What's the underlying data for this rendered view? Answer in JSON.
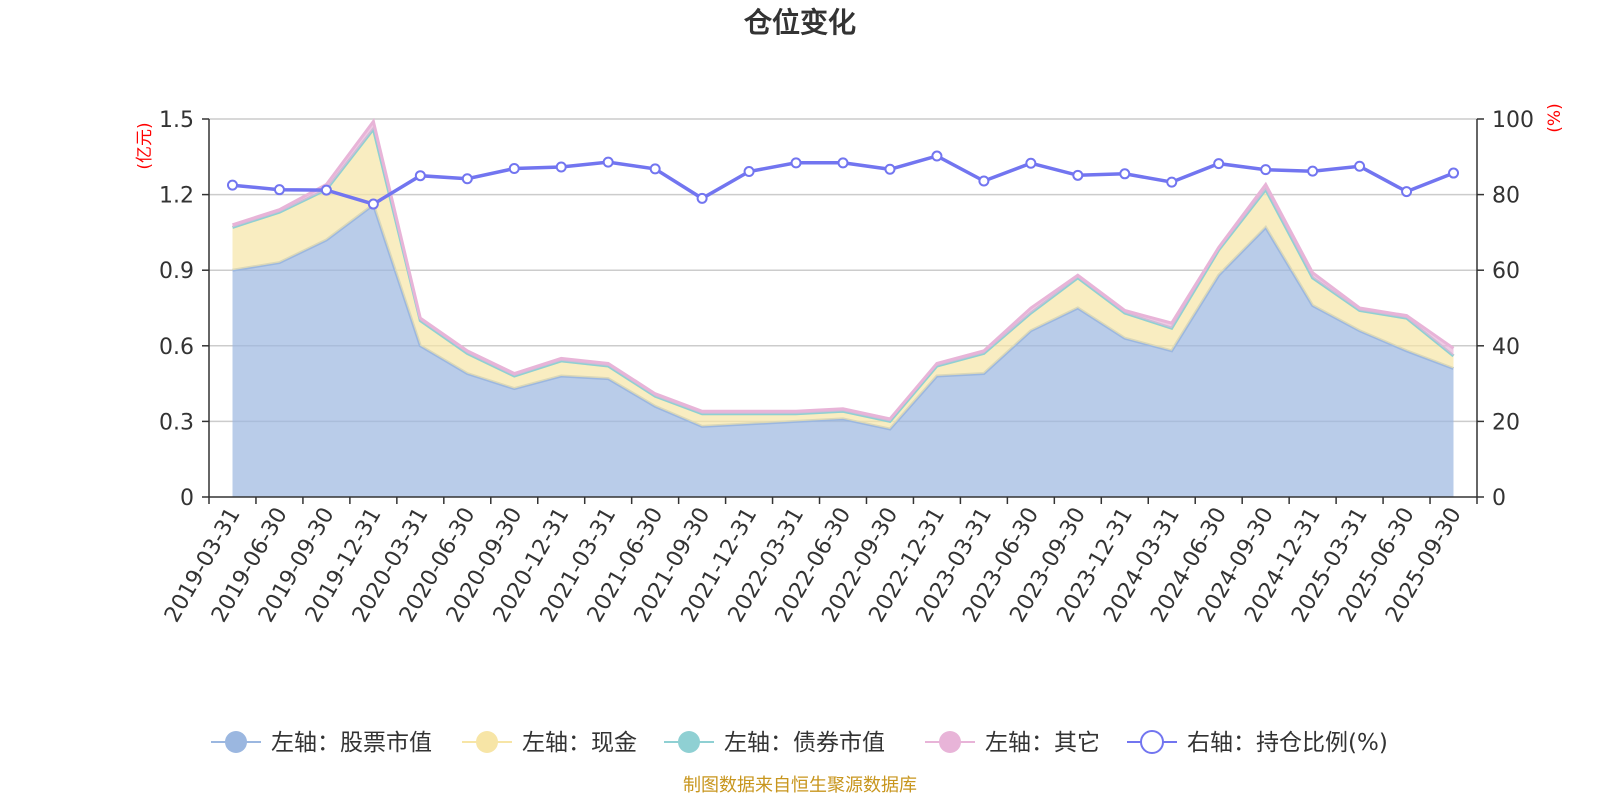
{
  "chart_data": {
    "type": "area",
    "title": "仓位变化",
    "source": "制图数据来自恒生聚源数据库",
    "left_axis": {
      "unit": "(亿元)",
      "range": [
        0,
        1.5
      ],
      "ticks": [
        "0",
        "0.3",
        "0.6",
        "0.9",
        "1.2",
        "1.5"
      ]
    },
    "right_axis": {
      "unit": "(%)",
      "range": [
        0,
        100
      ],
      "ticks": [
        "0",
        "20",
        "40",
        "60",
        "80",
        "100"
      ]
    },
    "grid": true,
    "legend_position": "bottom",
    "categories": [
      "2019-03-31",
      "2019-06-30",
      "2019-09-30",
      "2019-12-31",
      "2020-03-31",
      "2020-06-30",
      "2020-09-30",
      "2020-12-31",
      "2021-03-31",
      "2021-06-30",
      "2021-09-30",
      "2021-12-31",
      "2022-03-31",
      "2022-06-30",
      "2022-09-30",
      "2022-12-31",
      "2023-03-31",
      "2023-06-30",
      "2023-09-30",
      "2023-12-31",
      "2024-03-31",
      "2024-06-30",
      "2024-09-30",
      "2024-12-31",
      "2025-03-31",
      "2025-06-30",
      "2025-09-30"
    ],
    "series": [
      {
        "name": "左轴：股票市值",
        "axis": "left",
        "kind": "stacked-area",
        "color": "#9bb7e0",
        "values": [
          0.9,
          0.93,
          1.02,
          1.16,
          0.6,
          0.49,
          0.43,
          0.48,
          0.47,
          0.36,
          0.28,
          0.29,
          0.3,
          0.31,
          0.27,
          0.48,
          0.49,
          0.66,
          0.75,
          0.63,
          0.58,
          0.88,
          1.07,
          0.76,
          0.66,
          0.58,
          0.51
        ]
      },
      {
        "name": "左轴：现金",
        "axis": "left",
        "kind": "stacked-area",
        "color": "#f7e5a6",
        "values": [
          0.17,
          0.2,
          0.2,
          0.3,
          0.1,
          0.08,
          0.05,
          0.06,
          0.05,
          0.04,
          0.05,
          0.04,
          0.03,
          0.03,
          0.03,
          0.04,
          0.08,
          0.07,
          0.12,
          0.1,
          0.09,
          0.1,
          0.15,
          0.11,
          0.08,
          0.13,
          0.05
        ]
      },
      {
        "name": "左轴：债券市值",
        "axis": "left",
        "kind": "stacked-area",
        "color": "#8fd0d3",
        "values": [
          0,
          0,
          0,
          0,
          0,
          0,
          0,
          0,
          0,
          0,
          0,
          0,
          0,
          0,
          0,
          0,
          0,
          0,
          0,
          0,
          0,
          0,
          0,
          0,
          0,
          0,
          0
        ]
      },
      {
        "name": "左轴：其它",
        "axis": "left",
        "kind": "stacked-area",
        "color": "#e8b4d8",
        "values": [
          0.01,
          0.01,
          0.02,
          0.03,
          0.01,
          0.01,
          0.01,
          0.01,
          0.01,
          0.01,
          0.01,
          0.01,
          0.01,
          0.01,
          0.01,
          0.01,
          0.01,
          0.02,
          0.01,
          0.01,
          0.02,
          0.01,
          0.02,
          0.02,
          0.01,
          0.01,
          0.03
        ]
      },
      {
        "name": "右轴：持仓比例(%)",
        "axis": "right",
        "kind": "line",
        "color": "#7275f0",
        "values": [
          82.5,
          81.3,
          81.2,
          77.5,
          85.0,
          84.2,
          86.9,
          87.3,
          88.6,
          86.8,
          79.0,
          86.1,
          88.4,
          88.4,
          86.7,
          90.2,
          83.6,
          88.3,
          85.1,
          85.5,
          83.3,
          88.2,
          86.6,
          86.2,
          87.5,
          80.8,
          85.7
        ]
      }
    ]
  }
}
